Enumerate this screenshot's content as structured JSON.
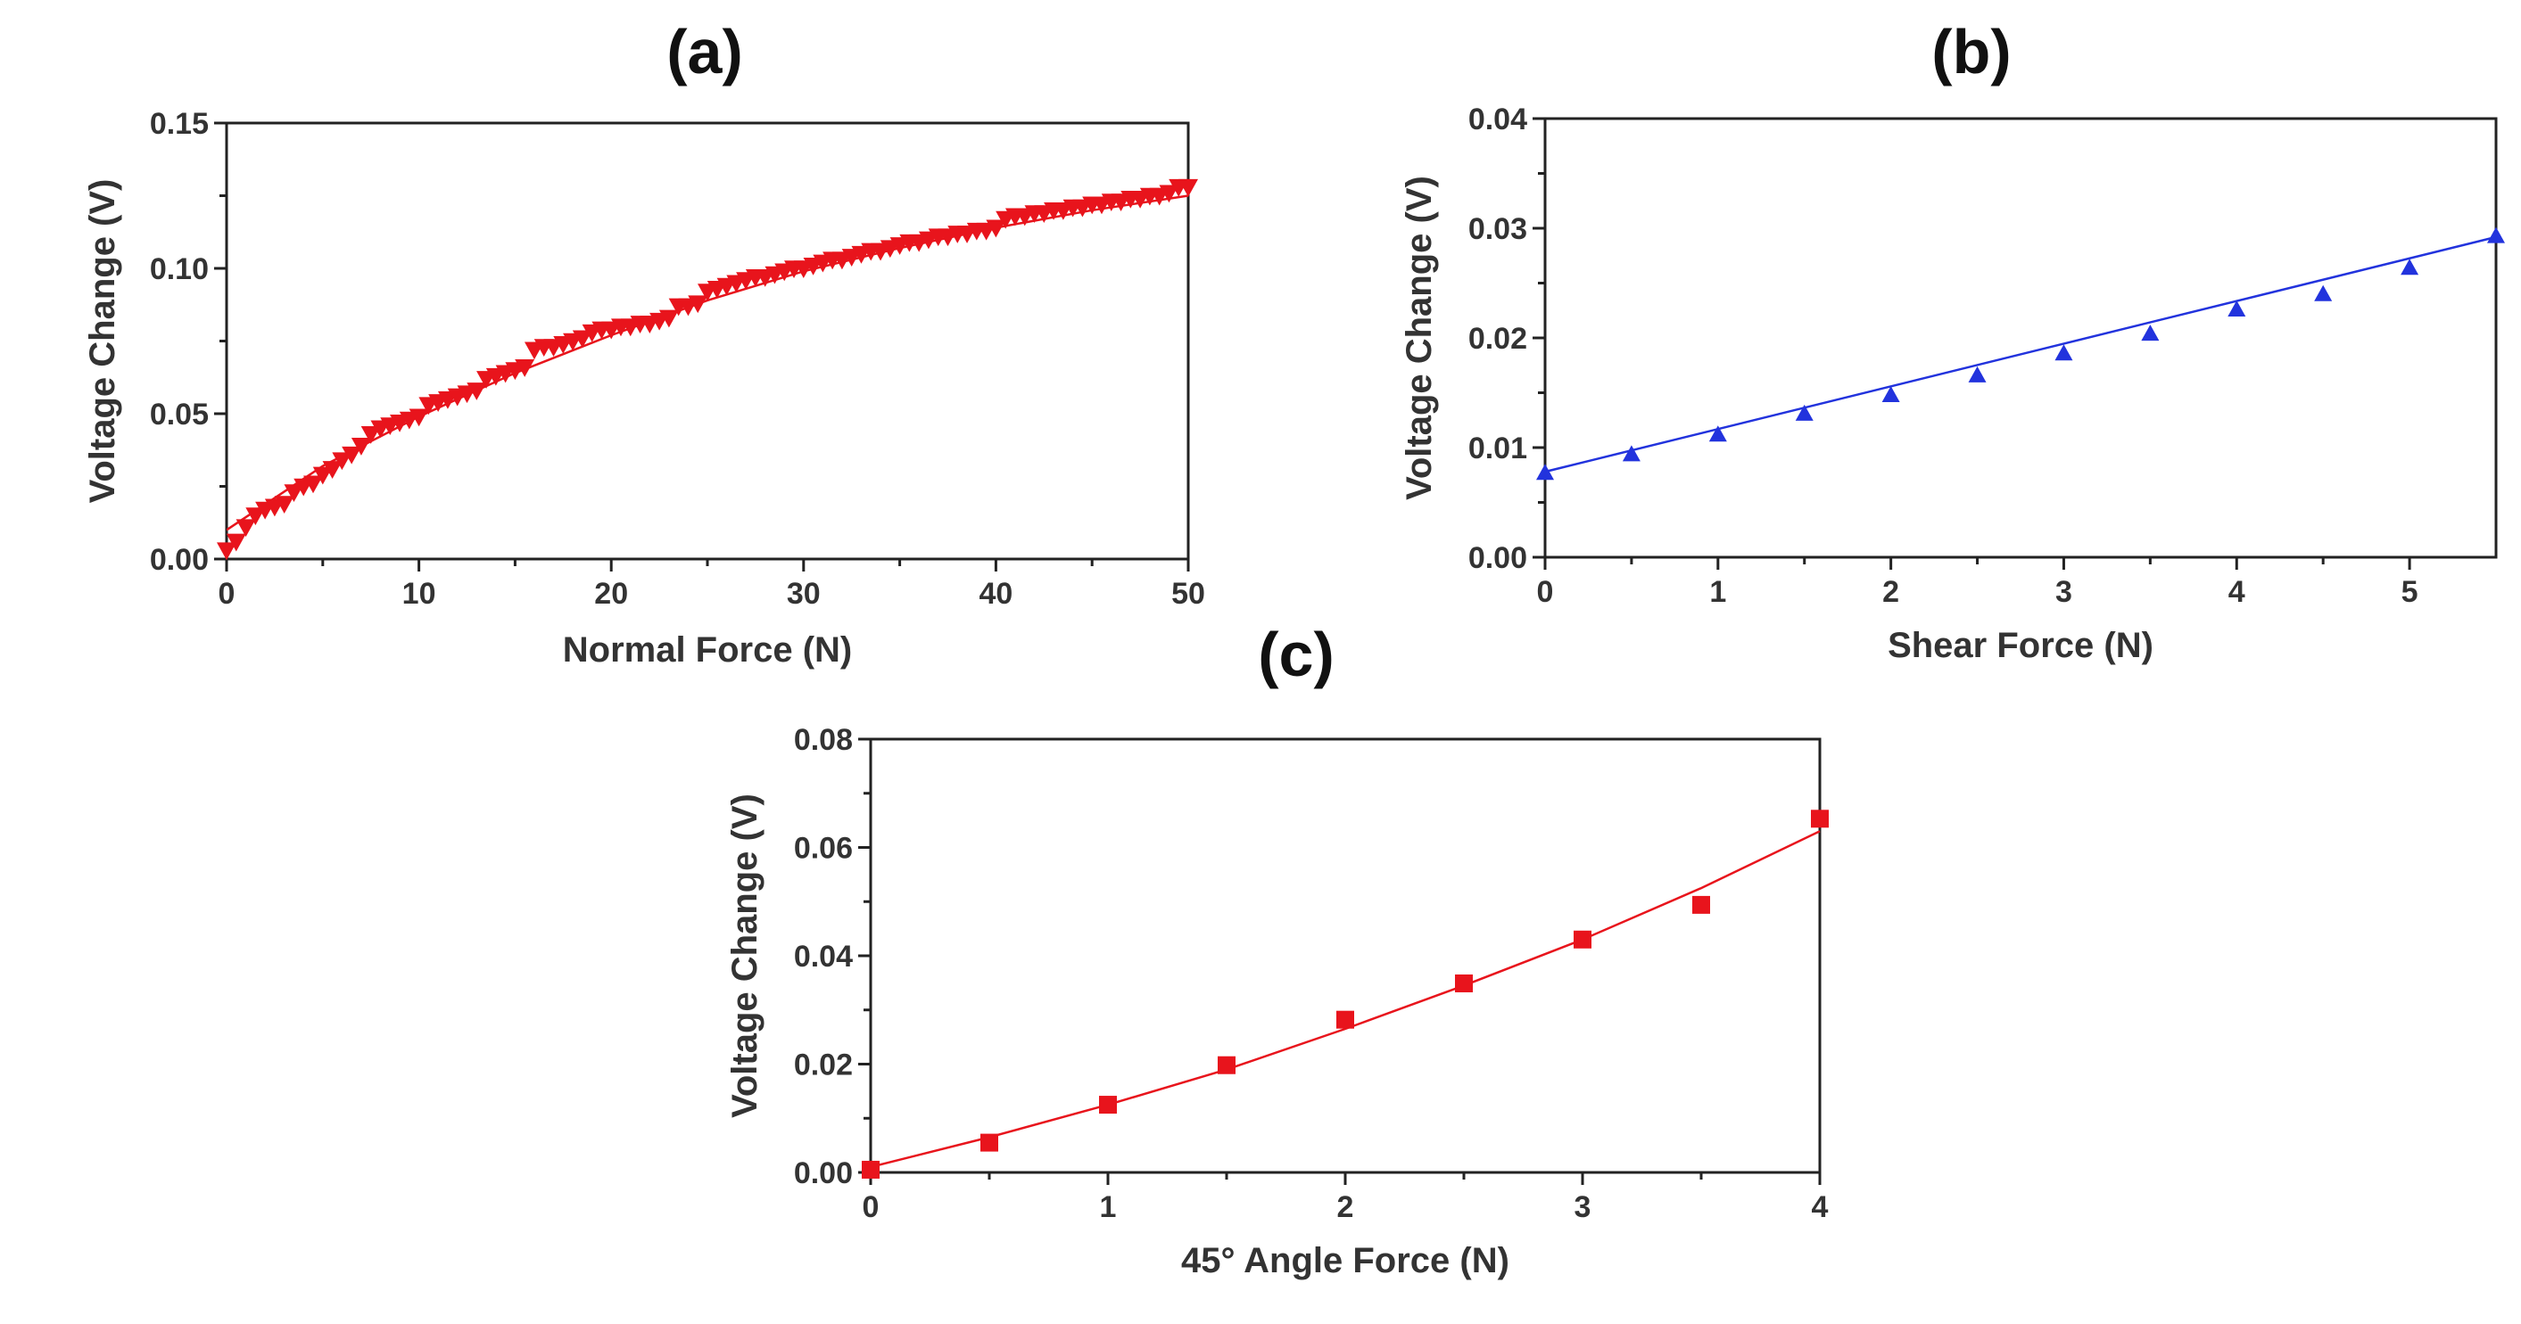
{
  "chart_data": [
    {
      "id": "a",
      "panel_label": "(a)",
      "type": "scatter",
      "marker": "triangle-down",
      "color": "#e8141c",
      "xlabel": "Normal Force (N)",
      "ylabel": "Voltage Change (V)",
      "xlim": [
        0,
        50
      ],
      "ylim": [
        0,
        0.15
      ],
      "xticks": [
        0,
        10,
        20,
        30,
        40,
        50
      ],
      "yticks": [
        0.0,
        0.05,
        0.1,
        0.15
      ],
      "xtick_labels": [
        "0",
        "10",
        "20",
        "30",
        "40",
        "50"
      ],
      "ytick_labels": [
        "0.00",
        "0.05",
        "0.10",
        "0.15"
      ],
      "fit": {
        "kind": "curve",
        "x": [
          0,
          5,
          10,
          15,
          20,
          25,
          30,
          35,
          40,
          45,
          50
        ],
        "y": [
          0.01,
          0.032,
          0.049,
          0.064,
          0.077,
          0.089,
          0.099,
          0.107,
          0.114,
          0.12,
          0.125
        ]
      },
      "points": {
        "x": [
          0,
          0.5,
          1,
          1.5,
          2,
          2.5,
          3,
          3.5,
          4,
          4.5,
          5,
          5.5,
          6,
          6.5,
          7,
          7.5,
          8,
          8.5,
          9,
          9.5,
          10,
          10.5,
          11,
          11.5,
          12,
          12.5,
          13,
          13.5,
          14,
          14.5,
          15,
          15.5,
          16,
          16.5,
          17,
          17.5,
          18,
          18.5,
          19,
          19.5,
          20,
          20.5,
          21,
          21.5,
          22,
          22.5,
          23,
          23.5,
          24,
          24.5,
          25,
          25.5,
          26,
          26.5,
          27,
          27.5,
          28,
          28.5,
          29,
          29.5,
          30,
          30.5,
          31,
          31.5,
          32,
          32.5,
          33,
          33.5,
          34,
          34.5,
          35,
          35.5,
          36,
          36.5,
          37,
          37.5,
          38,
          38.5,
          39,
          39.5,
          40,
          40.5,
          41,
          41.5,
          42,
          42.5,
          43,
          43.5,
          44,
          44.5,
          45,
          45.5,
          46,
          46.5,
          47,
          47.5,
          48,
          48.5,
          49,
          49.5,
          50
        ],
        "y": [
          0.003,
          0.006,
          0.011,
          0.015,
          0.017,
          0.018,
          0.019,
          0.023,
          0.025,
          0.026,
          0.029,
          0.031,
          0.034,
          0.036,
          0.039,
          0.043,
          0.045,
          0.046,
          0.047,
          0.048,
          0.049,
          0.053,
          0.054,
          0.055,
          0.056,
          0.057,
          0.058,
          0.062,
          0.063,
          0.064,
          0.065,
          0.066,
          0.072,
          0.073,
          0.073,
          0.074,
          0.075,
          0.076,
          0.078,
          0.079,
          0.079,
          0.08,
          0.08,
          0.081,
          0.081,
          0.082,
          0.083,
          0.087,
          0.087,
          0.088,
          0.092,
          0.093,
          0.094,
          0.095,
          0.096,
          0.097,
          0.097,
          0.098,
          0.099,
          0.1,
          0.1,
          0.101,
          0.102,
          0.103,
          0.103,
          0.104,
          0.105,
          0.106,
          0.106,
          0.107,
          0.108,
          0.109,
          0.109,
          0.11,
          0.111,
          0.111,
          0.112,
          0.112,
          0.113,
          0.113,
          0.114,
          0.117,
          0.118,
          0.118,
          0.119,
          0.119,
          0.12,
          0.12,
          0.121,
          0.121,
          0.122,
          0.122,
          0.123,
          0.123,
          0.124,
          0.124,
          0.125,
          0.125,
          0.126,
          0.128,
          0.128
        ]
      }
    },
    {
      "id": "b",
      "panel_label": "(b)",
      "type": "scatter",
      "marker": "triangle-up",
      "color": "#2233dd",
      "xlabel": "Shear Force (N)",
      "ylabel": "Voltage Change (V)",
      "xlim": [
        0,
        5.5
      ],
      "ylim": [
        0,
        0.04
      ],
      "xticks": [
        0,
        1,
        2,
        3,
        4,
        5
      ],
      "yticks": [
        0.0,
        0.01,
        0.02,
        0.03,
        0.04
      ],
      "xtick_labels": [
        "0",
        "1",
        "2",
        "3",
        "4",
        "5"
      ],
      "ytick_labels": [
        "0.00",
        "0.01",
        "0.02",
        "0.03",
        "0.04"
      ],
      "fit": {
        "kind": "line",
        "x": [
          0,
          5.5
        ],
        "y": [
          0.0078,
          0.0292
        ]
      },
      "points": {
        "x": [
          0,
          0.5,
          1,
          1.5,
          2,
          2.5,
          3,
          3.5,
          4,
          4.5,
          5,
          5.5
        ],
        "y": [
          0.0077,
          0.0094,
          0.0112,
          0.0131,
          0.0148,
          0.0166,
          0.0186,
          0.0204,
          0.0226,
          0.024,
          0.0264,
          0.0293
        ]
      }
    },
    {
      "id": "c",
      "panel_label": "(c)",
      "type": "scatter",
      "marker": "square",
      "color": "#e8141c",
      "xlabel": "45° Angle Force (N)",
      "ylabel": "Voltage Change (V)",
      "xlim": [
        0,
        4
      ],
      "ylim": [
        0,
        0.08
      ],
      "xticks": [
        0,
        1,
        2,
        3,
        4
      ],
      "yticks": [
        0.0,
        0.02,
        0.04,
        0.06,
        0.08
      ],
      "xtick_labels": [
        "0",
        "1",
        "2",
        "3",
        "4"
      ],
      "ytick_labels": [
        "0.00",
        "0.02",
        "0.04",
        "0.06",
        "0.08"
      ],
      "fit": {
        "kind": "curve",
        "x": [
          0,
          0.5,
          1,
          1.5,
          2,
          2.5,
          3,
          3.5,
          4
        ],
        "y": [
          0.001,
          0.0065,
          0.0125,
          0.019,
          0.0265,
          0.0345,
          0.043,
          0.0525,
          0.063
        ]
      },
      "points": {
        "x": [
          0,
          0.5,
          1,
          1.5,
          2,
          2.5,
          3,
          3.5,
          4
        ],
        "y": [
          0.0005,
          0.0055,
          0.0125,
          0.0198,
          0.0282,
          0.0349,
          0.043,
          0.0494,
          0.0653
        ]
      }
    }
  ]
}
